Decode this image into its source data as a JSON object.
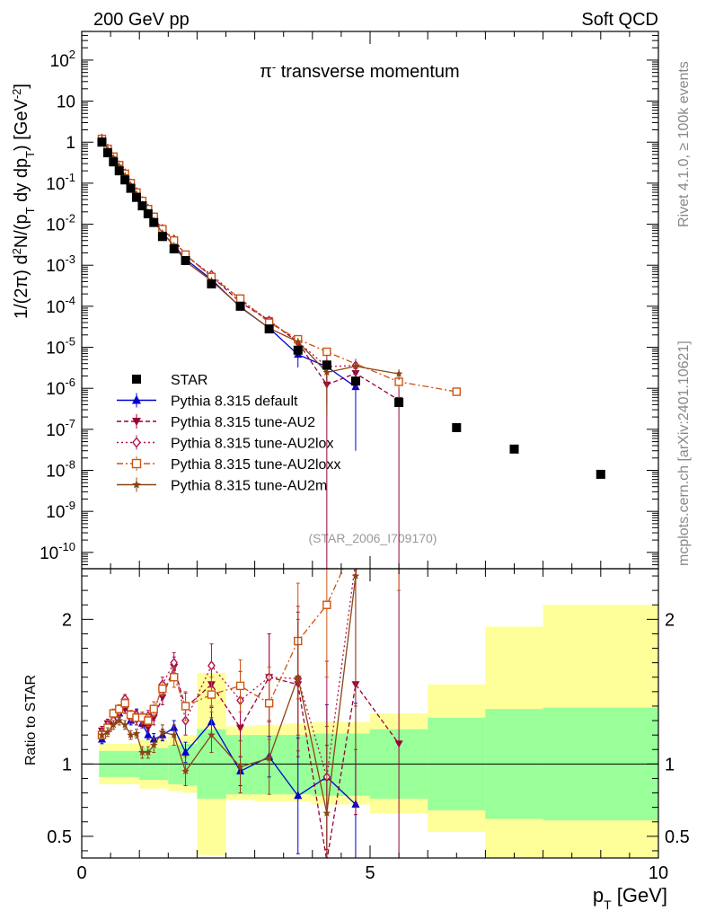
{
  "header": {
    "left_title": "200 GeV pp",
    "right_title": "Soft QCD",
    "plot_title_sym": "π",
    "plot_title_sup": "-",
    "plot_title_rest": " transverse momentum",
    "watermark": "(STAR_2006_I709170)",
    "side_label_top": "Rivet 4.1.0, ≥ 100k events",
    "side_label_bottom": "mcplots.cern.ch [arXiv:2401.10621]"
  },
  "axes": {
    "y_label_main_1": "1/(2π)  d",
    "y_label_main_sup": "2",
    "y_label_main_2": "N/(p",
    "y_label_main_sub": "T",
    "y_label_main_3": " dy dp",
    "y_label_main_sub2": "T",
    "y_label_main_4": ") [GeV",
    "y_label_main_sup2": "-2",
    "y_label_main_5": "]",
    "y_label_ratio": "Ratio to STAR",
    "x_label": "p",
    "x_label_sub": "T",
    "x_label_unit": " [GeV]",
    "x_ticks": [
      "0",
      "5",
      "10"
    ],
    "main_y_ticks": [
      {
        "mant": "10",
        "exp": "2",
        "v": 100
      },
      {
        "mant": "10",
        "exp": "",
        "v": 10
      },
      {
        "mant": "1",
        "exp": "",
        "v": 1
      },
      {
        "mant": "10",
        "exp": "-1",
        "v": 0.1
      },
      {
        "mant": "10",
        "exp": "-2",
        "v": 0.01
      },
      {
        "mant": "10",
        "exp": "-3",
        "v": 0.001
      },
      {
        "mant": "10",
        "exp": "-4",
        "v": 0.0001
      },
      {
        "mant": "10",
        "exp": "-5",
        "v": 1e-05
      },
      {
        "mant": "10",
        "exp": "-6",
        "v": 1e-06
      },
      {
        "mant": "10",
        "exp": "-7",
        "v": 1e-07
      },
      {
        "mant": "10",
        "exp": "-8",
        "v": 1e-08
      },
      {
        "mant": "10",
        "exp": "-9",
        "v": 1e-09
      },
      {
        "mant": "10",
        "exp": "-10",
        "v": 1e-10
      }
    ],
    "ratio_y_ticks": [
      {
        "label": "2",
        "v": 2
      },
      {
        "label": "1",
        "v": 1
      },
      {
        "label": "0.5",
        "v": 0.5
      }
    ]
  },
  "legend": [
    {
      "label": "STAR",
      "color": "#000000",
      "marker": "square",
      "dash": ""
    },
    {
      "label": "Pythia 8.315 default",
      "color": "#0000cc",
      "marker": "triangle",
      "dash": ""
    },
    {
      "label": "Pythia 8.315 tune-AU2",
      "color": "#99003a",
      "marker": "triangle-down",
      "dash": "5,3"
    },
    {
      "label": "Pythia 8.315 tune-AU2lox",
      "color": "#b01050",
      "marker": "diamond",
      "dash": "2,3"
    },
    {
      "label": "Pythia 8.315 tune-AU2loxx",
      "color": "#cc5511",
      "marker": "open-square",
      "dash": "7,3,2,3"
    },
    {
      "label": "Pythia 8.315 tune-AU2m",
      "color": "#8b4513",
      "marker": "star",
      "dash": ""
    }
  ],
  "chart_data": {
    "type": "scatter",
    "title": "π- transverse momentum",
    "xlabel": "pT [GeV]",
    "ylabel": "1/(2π) d2N/(pT dy dpT) [GeV-2]",
    "xlim": [
      0,
      10
    ],
    "ylim_main": [
      4e-11,
      500
    ],
    "ylim_ratio": [
      0.35,
      2.35
    ],
    "star": {
      "x": [
        0.35,
        0.45,
        0.55,
        0.65,
        0.75,
        0.85,
        0.95,
        1.05,
        1.15,
        1.25,
        1.4,
        1.6,
        1.8,
        2.25,
        2.75,
        3.25,
        3.75,
        4.25,
        4.75,
        5.5,
        6.5,
        7.5,
        9.0
      ],
      "y": [
        1.0,
        0.55,
        0.33,
        0.2,
        0.12,
        0.075,
        0.045,
        0.028,
        0.018,
        0.011,
        0.005,
        0.0025,
        0.0013,
        0.00035,
        0.0001,
        2.8e-05,
        8.5e-06,
        3.7e-06,
        1.5e-06,
        4.5e-07,
        1.1e-07,
        3.3e-08,
        8e-09
      ]
    },
    "band_x": [
      0.3,
      1.0,
      1.5,
      1.75,
      2.0,
      2.5,
      3.0,
      3.5,
      4.0,
      4.5,
      5.0,
      6.0,
      7.0,
      8.0,
      10.0
    ],
    "band_inner_lo": [
      0.91,
      0.89,
      0.86,
      0.85,
      0.76,
      0.79,
      0.79,
      0.79,
      0.78,
      0.78,
      0.76,
      0.68,
      0.62,
      0.61
    ],
    "band_inner_hi": [
      1.09,
      1.11,
      1.13,
      1.14,
      1.24,
      1.2,
      1.2,
      1.2,
      1.21,
      1.21,
      1.24,
      1.32,
      1.38,
      1.39
    ],
    "band_outer_lo": [
      0.86,
      0.83,
      0.81,
      0.8,
      0.37,
      0.75,
      0.74,
      0.74,
      0.72,
      0.72,
      0.66,
      0.53,
      0.35,
      0.35
    ],
    "band_outer_hi": [
      1.14,
      1.17,
      1.19,
      1.2,
      1.63,
      1.26,
      1.27,
      1.28,
      1.29,
      1.29,
      1.35,
      1.55,
      1.95,
      2.1
    ],
    "series": [
      {
        "name": "Pythia 8.315 default",
        "x": [
          0.35,
          0.45,
          0.55,
          0.65,
          0.75,
          0.85,
          0.95,
          1.05,
          1.15,
          1.25,
          1.4,
          1.6,
          1.8,
          2.25,
          2.75,
          3.25,
          3.75,
          4.25,
          4.75
        ],
        "ratio": [
          1.17,
          1.25,
          1.3,
          1.35,
          1.42,
          1.3,
          1.35,
          1.28,
          1.2,
          1.17,
          1.2,
          1.25,
          1.08,
          1.29,
          0.95,
          1.05,
          0.78,
          0.91,
          0.72
        ],
        "rerr": [
          0.03,
          0.03,
          0.03,
          0.03,
          0.03,
          0.03,
          0.03,
          0.03,
          0.03,
          0.04,
          0.04,
          0.05,
          0.07,
          0.1,
          0.1,
          0.14,
          0.4,
          0.5,
          0.7
        ]
      },
      {
        "name": "Pythia 8.315 tune-AU2",
        "x": [
          0.35,
          0.45,
          0.55,
          0.65,
          0.75,
          0.85,
          0.95,
          1.05,
          1.15,
          1.25,
          1.4,
          1.6,
          1.8,
          2.25,
          2.75,
          3.25,
          3.75,
          4.25,
          4.75,
          5.5
        ],
        "ratio": [
          1.23,
          1.28,
          1.32,
          1.35,
          1.38,
          1.34,
          1.3,
          1.3,
          1.25,
          1.32,
          1.46,
          1.67,
          1.39,
          1.55,
          1.25,
          1.6,
          1.55,
          0.33,
          1.55,
          1.14
        ],
        "rerr": [
          0.03,
          0.03,
          0.03,
          0.03,
          0.03,
          0.03,
          0.03,
          0.04,
          0.04,
          0.05,
          0.05,
          0.07,
          0.1,
          0.15,
          0.2,
          0.3,
          0.5,
          0.8,
          0.9,
          1.3
        ]
      },
      {
        "name": "Pythia 8.315 tune-AU2lox",
        "x": [
          0.35,
          0.45,
          0.55,
          0.65,
          0.75,
          0.85,
          0.95,
          1.05,
          1.15,
          1.25,
          1.4,
          1.6,
          1.8,
          2.25,
          2.75,
          3.25,
          3.75,
          4.25,
          4.75
        ],
        "ratio": [
          1.22,
          1.27,
          1.3,
          1.36,
          1.45,
          1.32,
          1.34,
          1.31,
          1.33,
          1.35,
          1.55,
          1.7,
          1.3,
          1.68,
          1.44,
          1.6,
          1.59,
          0.91,
          2.4
        ],
        "rerr": [
          0.03,
          0.03,
          0.03,
          0.03,
          0.03,
          0.03,
          0.03,
          0.04,
          0.04,
          0.05,
          0.05,
          0.07,
          0.1,
          0.15,
          0.2,
          0.3,
          0.5,
          0.8,
          1.0
        ]
      },
      {
        "name": "Pythia 8.315 tune-AU2loxx",
        "x": [
          0.35,
          0.45,
          0.55,
          0.65,
          0.75,
          0.85,
          0.95,
          1.05,
          1.15,
          1.25,
          1.4,
          1.6,
          1.8,
          2.25,
          2.75,
          3.25,
          3.75,
          4.25,
          5.5,
          6.5
        ],
        "ratio": [
          1.2,
          1.25,
          1.35,
          1.38,
          1.42,
          1.34,
          1.32,
          1.32,
          1.3,
          1.38,
          1.52,
          1.6,
          1.4,
          1.48,
          1.54,
          1.42,
          1.85,
          2.1,
          3.2,
          7.5
        ],
        "rerr": [
          0.03,
          0.03,
          0.03,
          0.03,
          0.03,
          0.03,
          0.03,
          0.04,
          0.04,
          0.05,
          0.05,
          0.07,
          0.1,
          0.12,
          0.18,
          0.25,
          0.4,
          0.5,
          1.0,
          1.5
        ]
      },
      {
        "name": "Pythia 8.315 tune-AU2m",
        "x": [
          0.35,
          0.45,
          0.55,
          0.65,
          0.75,
          0.85,
          0.95,
          1.05,
          1.15,
          1.25,
          1.4,
          1.6,
          1.8,
          2.25,
          2.75,
          3.25,
          3.75,
          4.25,
          4.75,
          5.5
        ],
        "ratio": [
          1.2,
          1.22,
          1.27,
          1.3,
          1.27,
          1.2,
          1.21,
          1.08,
          1.08,
          1.13,
          1.22,
          1.2,
          0.95,
          1.2,
          0.98,
          1.04,
          1.6,
          0.66,
          2.3,
          5.0
        ],
        "rerr": [
          0.03,
          0.03,
          0.03,
          0.03,
          0.03,
          0.03,
          0.03,
          0.04,
          0.04,
          0.05,
          0.05,
          0.07,
          0.1,
          0.12,
          0.18,
          0.25,
          0.4,
          0.6,
          1.2,
          1.5
        ]
      }
    ]
  }
}
